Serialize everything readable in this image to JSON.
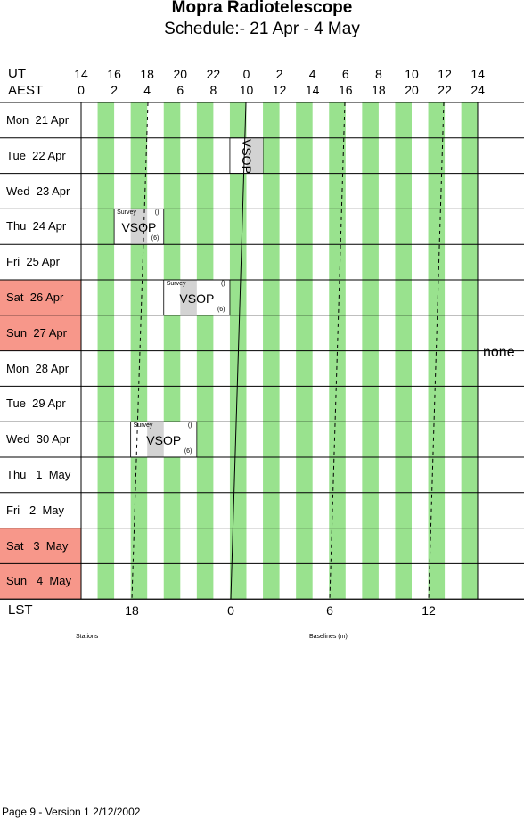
{
  "title": "Mopra Radiotelescope",
  "subtitle": "Schedule:- 21 Apr - 4  May",
  "axes": {
    "ut_label": "UT",
    "aest_label": "AEST",
    "lst_label": "LST",
    "ut_ticks": [
      "14",
      "16",
      "18",
      "20",
      "22",
      "0",
      "2",
      "4",
      "6",
      "8",
      "10",
      "12",
      "14"
    ],
    "aest_ticks": [
      "0",
      "2",
      "4",
      "6",
      "8",
      "10",
      "12",
      "14",
      "16",
      "18",
      "20",
      "22",
      "24"
    ],
    "lst_ticks": [
      "18",
      "0",
      "6",
      "12"
    ]
  },
  "days": [
    {
      "label": "Mon  21 Apr",
      "weekend": false
    },
    {
      "label": "Tue  22 Apr",
      "weekend": false
    },
    {
      "label": "Wed  23 Apr",
      "weekend": false
    },
    {
      "label": "Thu  24 Apr",
      "weekend": false
    },
    {
      "label": "Fri  25 Apr",
      "weekend": false
    },
    {
      "label": "Sat  26 Apr",
      "weekend": true
    },
    {
      "label": "Sun  27 Apr",
      "weekend": true
    },
    {
      "label": "Mon  28 Apr",
      "weekend": false
    },
    {
      "label": "Tue  29 Apr",
      "weekend": false
    },
    {
      "label": "Wed  30 Apr",
      "weekend": false
    },
    {
      "label": "Thu   1  May",
      "weekend": false
    },
    {
      "label": "Fri   2  May",
      "weekend": false
    },
    {
      "label": "Sat   3  May",
      "weekend": true
    },
    {
      "label": "Sun   4  May",
      "weekend": true
    }
  ],
  "bookings": [
    {
      "day_index": 1,
      "start_aest": 9,
      "end_aest": 11,
      "label": "VSOP",
      "vertical": true,
      "survey": "",
      "top_right": "",
      "bottom_right": ""
    },
    {
      "day_index": 3,
      "start_aest": 2,
      "end_aest": 5,
      "label": "VSOP",
      "vertical": false,
      "survey": "Survey",
      "top_right": "()",
      "bottom_right": "(6)"
    },
    {
      "day_index": 5,
      "start_aest": 5,
      "end_aest": 9,
      "label": "VSOP",
      "vertical": false,
      "survey": "Survey",
      "top_right": "()",
      "bottom_right": "(6)"
    },
    {
      "day_index": 9,
      "start_aest": 3,
      "end_aest": 7,
      "label": "VSOP",
      "vertical": false,
      "survey": "Survey",
      "top_right": "()",
      "bottom_right": "(6)"
    }
  ],
  "side_note": "none",
  "stations_label": "Stations",
  "baselines_label": "Baselines (m)",
  "footer": "Page 9 - Version 1  2/12/2002",
  "colors": {
    "stripe": "#99e28e",
    "weekend": "#f7978a",
    "booking": "#d3d3d3",
    "grid": "#000000"
  }
}
